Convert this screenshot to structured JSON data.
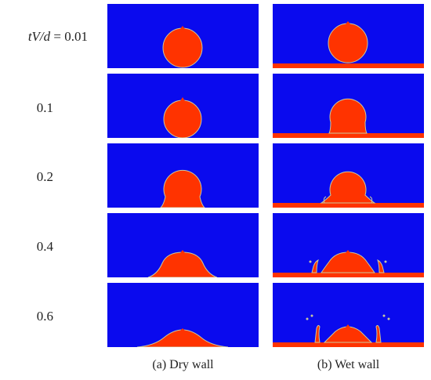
{
  "figure": {
    "row_labels": [
      {
        "variable": "tV/d",
        "equals": " = ",
        "value": "0.01"
      },
      {
        "value": "0.1"
      },
      {
        "value": "0.2"
      },
      {
        "value": "0.4"
      },
      {
        "value": "0.6"
      }
    ],
    "columns": [
      {
        "caption": "(a) Dry wall",
        "wall": "dry"
      },
      {
        "caption": "(b) Wet wall",
        "wall": "wet"
      }
    ],
    "colors": {
      "fluid_background": "#0a0aee",
      "droplet": "#ff3300",
      "interface": "#c8c8a0"
    }
  }
}
